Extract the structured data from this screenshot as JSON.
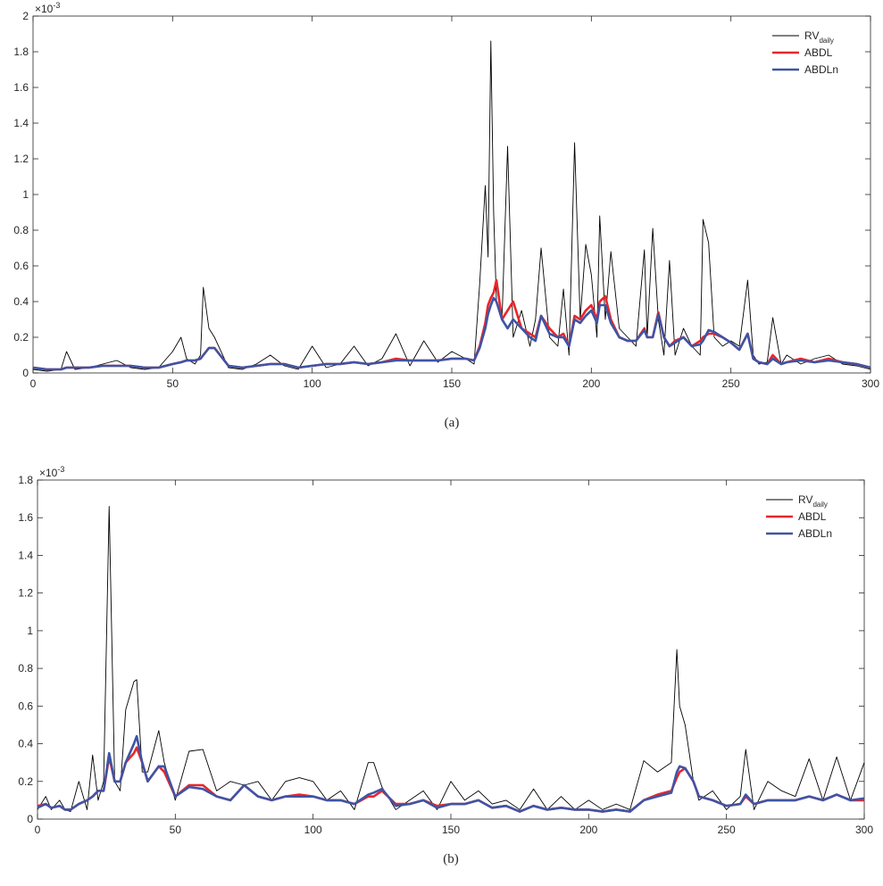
{
  "chart_data": [
    {
      "type": "line",
      "caption": "(a)",
      "y_scale_base": "×10",
      "y_scale_exponent": "-3",
      "xlim": [
        0,
        300
      ],
      "xticks": [
        0,
        50,
        100,
        150,
        200,
        250,
        300
      ],
      "ylim": [
        0,
        2
      ],
      "yticks": [
        0,
        0.2,
        0.4,
        0.6,
        0.8,
        1,
        1.2,
        1.4,
        1.6,
        1.8,
        2
      ],
      "legend": "upper right",
      "x": [
        0,
        5,
        10,
        12,
        15,
        20,
        25,
        30,
        35,
        40,
        45,
        50,
        53,
        55,
        58,
        60,
        61,
        63,
        65,
        70,
        75,
        80,
        85,
        90,
        95,
        100,
        105,
        110,
        115,
        120,
        125,
        130,
        135,
        140,
        145,
        150,
        155,
        158,
        160,
        162,
        163,
        164,
        165,
        166,
        168,
        170,
        172,
        175,
        178,
        180,
        182,
        185,
        188,
        190,
        192,
        194,
        196,
        198,
        200,
        202,
        203,
        205,
        207,
        210,
        213,
        216,
        219,
        220,
        222,
        224,
        226,
        228,
        230,
        233,
        236,
        239,
        240,
        242,
        244,
        247,
        250,
        253,
        256,
        258,
        260,
        263,
        265,
        268,
        270,
        275,
        280,
        285,
        290,
        295,
        300
      ],
      "series": [
        {
          "name": "RV",
          "name_subscript": "daily",
          "color": "#000000",
          "values": [
            0.02,
            0.01,
            0.02,
            0.12,
            0.02,
            0.03,
            0.05,
            0.07,
            0.03,
            0.02,
            0.03,
            0.12,
            0.2,
            0.08,
            0.05,
            0.1,
            0.48,
            0.25,
            0.2,
            0.03,
            0.02,
            0.05,
            0.1,
            0.04,
            0.02,
            0.15,
            0.03,
            0.05,
            0.15,
            0.04,
            0.08,
            0.22,
            0.04,
            0.18,
            0.06,
            0.12,
            0.08,
            0.05,
            0.5,
            1.05,
            0.65,
            1.86,
            0.9,
            0.4,
            0.3,
            1.27,
            0.2,
            0.35,
            0.15,
            0.3,
            0.7,
            0.2,
            0.15,
            0.47,
            0.1,
            1.29,
            0.3,
            0.72,
            0.55,
            0.2,
            0.88,
            0.3,
            0.68,
            0.25,
            0.2,
            0.15,
            0.69,
            0.2,
            0.81,
            0.3,
            0.1,
            0.63,
            0.1,
            0.25,
            0.15,
            0.1,
            0.86,
            0.73,
            0.2,
            0.15,
            0.18,
            0.15,
            0.52,
            0.1,
            0.05,
            0.06,
            0.31,
            0.05,
            0.1,
            0.05,
            0.08,
            0.1,
            0.05,
            0.04,
            0.02
          ]
        },
        {
          "name": "ABDL",
          "color": "#e8262b",
          "values": [
            0.03,
            0.02,
            0.02,
            0.03,
            0.03,
            0.03,
            0.04,
            0.04,
            0.04,
            0.03,
            0.03,
            0.05,
            0.06,
            0.07,
            0.07,
            0.08,
            0.1,
            0.14,
            0.14,
            0.04,
            0.03,
            0.04,
            0.05,
            0.05,
            0.03,
            0.04,
            0.05,
            0.05,
            0.06,
            0.05,
            0.06,
            0.08,
            0.07,
            0.07,
            0.07,
            0.08,
            0.08,
            0.07,
            0.15,
            0.28,
            0.38,
            0.42,
            0.45,
            0.52,
            0.3,
            0.35,
            0.4,
            0.25,
            0.22,
            0.2,
            0.32,
            0.25,
            0.2,
            0.22,
            0.15,
            0.32,
            0.3,
            0.35,
            0.38,
            0.3,
            0.4,
            0.43,
            0.3,
            0.2,
            0.18,
            0.18,
            0.25,
            0.2,
            0.2,
            0.34,
            0.2,
            0.15,
            0.18,
            0.2,
            0.15,
            0.18,
            0.2,
            0.22,
            0.22,
            0.2,
            0.17,
            0.13,
            0.22,
            0.08,
            0.06,
            0.05,
            0.1,
            0.05,
            0.06,
            0.08,
            0.06,
            0.08,
            0.06,
            0.05,
            0.03
          ]
        },
        {
          "name": "ABDLn",
          "color": "#3e54a5",
          "values": [
            0.03,
            0.02,
            0.02,
            0.03,
            0.03,
            0.03,
            0.04,
            0.04,
            0.04,
            0.03,
            0.03,
            0.05,
            0.06,
            0.07,
            0.07,
            0.08,
            0.1,
            0.14,
            0.14,
            0.04,
            0.03,
            0.04,
            0.05,
            0.05,
            0.03,
            0.04,
            0.05,
            0.05,
            0.06,
            0.05,
            0.06,
            0.07,
            0.07,
            0.07,
            0.07,
            0.08,
            0.08,
            0.07,
            0.14,
            0.25,
            0.33,
            0.38,
            0.42,
            0.4,
            0.3,
            0.25,
            0.3,
            0.25,
            0.2,
            0.18,
            0.32,
            0.22,
            0.2,
            0.2,
            0.15,
            0.3,
            0.28,
            0.32,
            0.35,
            0.28,
            0.38,
            0.38,
            0.28,
            0.2,
            0.18,
            0.18,
            0.24,
            0.2,
            0.2,
            0.33,
            0.2,
            0.15,
            0.17,
            0.2,
            0.15,
            0.16,
            0.18,
            0.24,
            0.23,
            0.2,
            0.17,
            0.13,
            0.22,
            0.08,
            0.06,
            0.05,
            0.08,
            0.05,
            0.06,
            0.07,
            0.06,
            0.07,
            0.06,
            0.05,
            0.03
          ]
        }
      ]
    },
    {
      "type": "line",
      "caption": "(b)",
      "y_scale_base": "×10",
      "y_scale_exponent": "-3",
      "xlim": [
        0,
        300
      ],
      "xticks": [
        0,
        50,
        100,
        150,
        200,
        250,
        300
      ],
      "ylim": [
        0,
        1.8
      ],
      "yticks": [
        0,
        0.2,
        0.4,
        0.6,
        0.8,
        1,
        1.2,
        1.4,
        1.6,
        1.8
      ],
      "legend": "upper right",
      "x": [
        0,
        3,
        5,
        8,
        10,
        12,
        15,
        18,
        20,
        22,
        24,
        26,
        28,
        30,
        32,
        35,
        36,
        38,
        40,
        44,
        46,
        50,
        55,
        60,
        65,
        70,
        75,
        80,
        85,
        90,
        95,
        100,
        105,
        110,
        115,
        120,
        122,
        125,
        130,
        135,
        140,
        145,
        150,
        155,
        160,
        165,
        170,
        175,
        180,
        185,
        190,
        195,
        200,
        205,
        210,
        215,
        220,
        225,
        230,
        232,
        233,
        235,
        238,
        240,
        245,
        250,
        255,
        257,
        260,
        265,
        270,
        275,
        280,
        285,
        290,
        295,
        300
      ],
      "series": [
        {
          "name": "RV",
          "name_subscript": "daily",
          "color": "#000000",
          "values": [
            0.05,
            0.12,
            0.05,
            0.1,
            0.05,
            0.04,
            0.2,
            0.05,
            0.34,
            0.1,
            0.2,
            1.66,
            0.2,
            0.15,
            0.58,
            0.73,
            0.74,
            0.25,
            0.25,
            0.47,
            0.3,
            0.1,
            0.36,
            0.37,
            0.15,
            0.2,
            0.18,
            0.2,
            0.1,
            0.2,
            0.22,
            0.2,
            0.1,
            0.15,
            0.05,
            0.3,
            0.3,
            0.17,
            0.05,
            0.1,
            0.15,
            0.05,
            0.2,
            0.1,
            0.15,
            0.08,
            0.1,
            0.05,
            0.16,
            0.05,
            0.12,
            0.05,
            0.1,
            0.05,
            0.08,
            0.05,
            0.31,
            0.25,
            0.3,
            0.9,
            0.6,
            0.5,
            0.2,
            0.1,
            0.15,
            0.05,
            0.12,
            0.37,
            0.05,
            0.2,
            0.15,
            0.12,
            0.32,
            0.1,
            0.33,
            0.1,
            0.3
          ]
        },
        {
          "name": "ABDL",
          "color": "#e8262b",
          "values": [
            0.07,
            0.08,
            0.06,
            0.07,
            0.05,
            0.05,
            0.08,
            0.1,
            0.12,
            0.15,
            0.15,
            0.33,
            0.2,
            0.2,
            0.3,
            0.35,
            0.38,
            0.3,
            0.2,
            0.28,
            0.25,
            0.12,
            0.18,
            0.18,
            0.12,
            0.1,
            0.18,
            0.12,
            0.1,
            0.12,
            0.13,
            0.12,
            0.1,
            0.1,
            0.08,
            0.12,
            0.12,
            0.15,
            0.08,
            0.08,
            0.1,
            0.07,
            0.08,
            0.08,
            0.1,
            0.06,
            0.07,
            0.04,
            0.07,
            0.05,
            0.06,
            0.05,
            0.05,
            0.04,
            0.05,
            0.04,
            0.1,
            0.13,
            0.15,
            0.22,
            0.25,
            0.27,
            0.2,
            0.12,
            0.1,
            0.07,
            0.08,
            0.12,
            0.08,
            0.1,
            0.1,
            0.1,
            0.12,
            0.1,
            0.13,
            0.1,
            0.1
          ]
        },
        {
          "name": "ABDLn",
          "color": "#3e54a5",
          "values": [
            0.06,
            0.08,
            0.06,
            0.07,
            0.05,
            0.05,
            0.08,
            0.1,
            0.12,
            0.15,
            0.15,
            0.35,
            0.2,
            0.2,
            0.3,
            0.4,
            0.44,
            0.3,
            0.2,
            0.28,
            0.28,
            0.12,
            0.17,
            0.16,
            0.12,
            0.1,
            0.18,
            0.12,
            0.1,
            0.12,
            0.12,
            0.12,
            0.1,
            0.1,
            0.08,
            0.13,
            0.14,
            0.16,
            0.07,
            0.08,
            0.1,
            0.06,
            0.08,
            0.08,
            0.1,
            0.06,
            0.07,
            0.04,
            0.07,
            0.05,
            0.06,
            0.05,
            0.05,
            0.04,
            0.05,
            0.04,
            0.1,
            0.12,
            0.14,
            0.25,
            0.28,
            0.27,
            0.2,
            0.12,
            0.1,
            0.07,
            0.08,
            0.13,
            0.08,
            0.1,
            0.1,
            0.1,
            0.12,
            0.1,
            0.13,
            0.1,
            0.11
          ]
        }
      ]
    }
  ]
}
